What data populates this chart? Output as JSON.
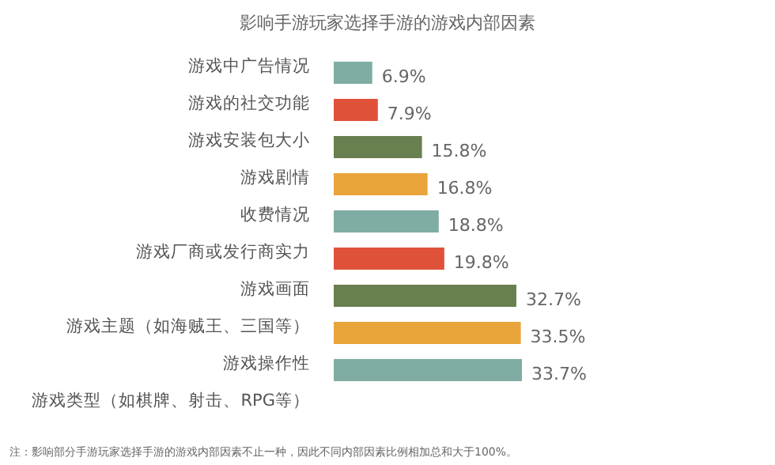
{
  "chart_data": {
    "type": "bar",
    "orientation": "horizontal",
    "relative": false,
    "title": "影响手游玩家选择手游的游戏内部因素",
    "categories": [
      "游戏中广告情况",
      "游戏的社交功能",
      "游戏安装包大小",
      "游戏剧情",
      "收费情况",
      "游戏厂商或发行商实力",
      "游戏画面",
      "游戏主题（如海贼王、三国等）",
      "游戏操作性",
      "游戏类型（如棋牌、射击、RPG等）"
    ],
    "values": [
      6.9,
      7.9,
      15.8,
      16.8,
      18.8,
      19.8,
      32.7,
      33.5,
      33.7,
      null
    ],
    "value_labels": [
      "6.9%",
      "7.9%",
      "15.8%",
      "16.8%",
      "18.8%",
      "19.8%",
      "32.7%",
      "33.5%",
      "33.7%",
      null
    ],
    "colors": [
      "#7fada3",
      "#e0513a",
      "#687f4f",
      "#e9a43b",
      "#7fada3",
      "#e0513a",
      "#687f4f",
      "#e9a43b",
      "#7fada3",
      null
    ],
    "annotations": [
      "注：影响部分手游玩家选择手游的游戏内部因素不止一种，因此不同内部因素比例相加总和大于100%。"
    ]
  }
}
